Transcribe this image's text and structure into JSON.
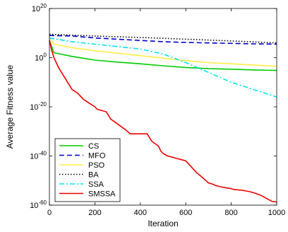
{
  "chart_data": {
    "type": "line",
    "title": "",
    "xlabel": "Iteration",
    "ylabel": "Average Fitness value",
    "xlim": [
      0,
      1000
    ],
    "ylim_log10": [
      -60,
      20
    ],
    "yscale": "log",
    "grid": false,
    "legend_position": "bottom-left",
    "x_ticks": [
      0,
      200,
      400,
      600,
      800,
      1000
    ],
    "y_ticks_exp": [
      20,
      0,
      -20,
      -40,
      -60
    ],
    "y_tick_base": "10",
    "series": [
      {
        "name": "CS",
        "color": "#00cc00",
        "dash": "solid",
        "x": [
          0,
          20,
          100,
          200,
          300,
          400,
          500,
          600,
          700,
          800,
          900,
          1000
        ],
        "log10_y": [
          7,
          2,
          0.5,
          -1,
          -1.8,
          -2.5,
          -3.3,
          -4,
          -4.5,
          -4.7,
          -5,
          -5.2
        ]
      },
      {
        "name": "MFO",
        "color": "#0000cc",
        "dash": "dashed",
        "x": [
          0,
          100,
          200,
          300,
          400,
          500,
          600,
          700,
          800,
          900,
          1000
        ],
        "log10_y": [
          9,
          8.8,
          8,
          7.5,
          7,
          6.5,
          6.2,
          6,
          5.8,
          5.6,
          5.5
        ]
      },
      {
        "name": "PSO",
        "color": "#ffee44",
        "dash": "solid",
        "x": [
          0,
          20,
          100,
          200,
          300,
          400,
          500,
          600,
          700,
          800,
          900,
          1000
        ],
        "log10_y": [
          8,
          5.5,
          4,
          2.8,
          1.8,
          0.8,
          -0.2,
          -1.2,
          -2,
          -2.5,
          -3,
          -3.5
        ]
      },
      {
        "name": "BA",
        "color": "#000000",
        "dash": "dotted",
        "x": [
          0,
          200,
          400,
          600,
          800,
          1000
        ],
        "log10_y": [
          9.5,
          8.8,
          8.2,
          7.5,
          6.8,
          6
        ]
      },
      {
        "name": "SSA",
        "color": "#00e5ee",
        "dash": "dashdot",
        "x": [
          0,
          100,
          200,
          300,
          400,
          500,
          600,
          700,
          800,
          900,
          1000
        ],
        "log10_y": [
          8,
          6.5,
          5.5,
          4.5,
          3.5,
          1.5,
          -2,
          -6,
          -10,
          -13,
          -16
        ]
      },
      {
        "name": "SMSSA",
        "color": "#ee0000",
        "dash": "solid",
        "x": [
          0,
          10,
          20,
          40,
          60,
          80,
          100,
          125,
          150,
          175,
          200,
          210,
          250,
          270,
          300,
          330,
          350,
          355,
          400,
          430,
          450,
          480,
          490,
          500,
          520,
          540,
          560,
          580,
          600,
          610,
          630,
          650,
          670,
          700,
          720,
          730,
          750,
          780,
          800,
          810,
          850,
          880,
          900,
          930,
          950,
          970,
          980,
          1000
        ],
        "log10_y": [
          7,
          3,
          0,
          -4,
          -7,
          -10,
          -13,
          -14.5,
          -17,
          -18.5,
          -20,
          -21,
          -22,
          -25,
          -27,
          -29,
          -30.5,
          -31,
          -31,
          -31,
          -34,
          -36,
          -38,
          -39,
          -40,
          -40.5,
          -41,
          -41.5,
          -42,
          -43,
          -45,
          -47,
          -48.5,
          -51,
          -51.5,
          -52,
          -52.5,
          -53,
          -53.3,
          -53.6,
          -54,
          -54.5,
          -55,
          -56,
          -57,
          -58,
          -58.5,
          -58.7
        ]
      }
    ]
  }
}
